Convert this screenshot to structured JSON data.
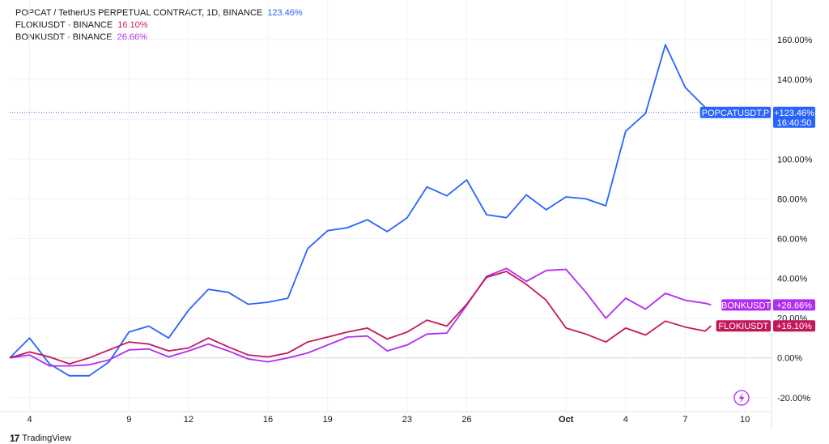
{
  "legend": [
    {
      "label": "POPCAT / TetherUS PERPETUAL CONTRACT, 1D, BINANCE",
      "value": "123.46%",
      "color": "#2962ff"
    },
    {
      "label": "FLOKIUSDT · BINANCE",
      "value": "16.10%",
      "color": "#d6195c"
    },
    {
      "label": "BONKUSDT · BINANCE",
      "value": "26.66%",
      "color": "#b12bf4"
    }
  ],
  "footer": {
    "logo": "17",
    "brand": "TradingView"
  },
  "flash_icon": "lightning-icon",
  "chart_data": {
    "type": "line",
    "x_ticks": [
      {
        "day": 4,
        "label": "4"
      },
      {
        "day": 9,
        "label": "9"
      },
      {
        "day": 12,
        "label": "12"
      },
      {
        "day": 16,
        "label": "16"
      },
      {
        "day": 19,
        "label": "19"
      },
      {
        "day": 23,
        "label": "23"
      },
      {
        "day": 26,
        "label": "26"
      },
      {
        "day": 31,
        "label": "Oct"
      },
      {
        "day": 34,
        "label": "4"
      },
      {
        "day": 37,
        "label": "7"
      },
      {
        "day": 40,
        "label": "10"
      }
    ],
    "xlim": [
      3,
      41.3
    ],
    "ylim": [
      -27,
      180
    ],
    "y_ticks": [
      {
        "v": 160,
        "label": "160.00%"
      },
      {
        "v": 140,
        "label": "140.00%"
      },
      {
        "v": 100,
        "label": "100.00%"
      },
      {
        "v": 80,
        "label": "80.00%"
      },
      {
        "v": 60,
        "label": "60.00%"
      },
      {
        "v": 40,
        "label": "40.00%"
      },
      {
        "v": 20,
        "label": "20.00%"
      },
      {
        "v": 0,
        "label": "0.00%"
      },
      {
        "v": -20,
        "label": "-20.00%"
      }
    ],
    "grid_ticks": [
      160,
      140,
      120,
      100,
      80,
      60,
      40,
      20,
      0,
      -20
    ],
    "series": [
      {
        "name": "POPCATUSDT.P",
        "color": "#2962ff",
        "tag_value": "+123.46%",
        "tag_time": "16:40:50",
        "last_value": 123.46,
        "points": [
          [
            3,
            0
          ],
          [
            4,
            10
          ],
          [
            5,
            -3
          ],
          [
            6,
            -9
          ],
          [
            7,
            -9
          ],
          [
            8,
            -2
          ],
          [
            9,
            13
          ],
          [
            10,
            16
          ],
          [
            11,
            10
          ],
          [
            12,
            24
          ],
          [
            13,
            34.5
          ],
          [
            14,
            33
          ],
          [
            15,
            27
          ],
          [
            16,
            28
          ],
          [
            17,
            30
          ],
          [
            18,
            55
          ],
          [
            19,
            64
          ],
          [
            20,
            65.5
          ],
          [
            21,
            69.5
          ],
          [
            22,
            63.5
          ],
          [
            23,
            70.5
          ],
          [
            24,
            86
          ],
          [
            25,
            81.5
          ],
          [
            26,
            89.5
          ],
          [
            27,
            72
          ],
          [
            28,
            70.5
          ],
          [
            29,
            82
          ],
          [
            30,
            74.5
          ],
          [
            31,
            81
          ],
          [
            32,
            80
          ],
          [
            33,
            76.5
          ],
          [
            34,
            114
          ],
          [
            35,
            123
          ],
          [
            36,
            157.5
          ],
          [
            37,
            136
          ],
          [
            38,
            126
          ],
          [
            38.3,
            123.46
          ]
        ]
      },
      {
        "name": "BONKUSDT",
        "color": "#b12bf4",
        "tag_value": "+26.66%",
        "last_value": 26.66,
        "points": [
          [
            3,
            0
          ],
          [
            4,
            1.5
          ],
          [
            5,
            -4
          ],
          [
            6,
            -4
          ],
          [
            7,
            -3.5
          ],
          [
            8,
            -1
          ],
          [
            9,
            4
          ],
          [
            10,
            4.5
          ],
          [
            11,
            0.5
          ],
          [
            12,
            3.5
          ],
          [
            13,
            7
          ],
          [
            14,
            3.5
          ],
          [
            15,
            -0.5
          ],
          [
            16,
            -2
          ],
          [
            17,
            0
          ],
          [
            18,
            2.5
          ],
          [
            19,
            6.5
          ],
          [
            20,
            10.5
          ],
          [
            21,
            11
          ],
          [
            22,
            3.5
          ],
          [
            23,
            6.5
          ],
          [
            24,
            12
          ],
          [
            25,
            12.5
          ],
          [
            26,
            26.5
          ],
          [
            27,
            41
          ],
          [
            28,
            45
          ],
          [
            29,
            38.5
          ],
          [
            30,
            44
          ],
          [
            31,
            44.5
          ],
          [
            32,
            33
          ],
          [
            33,
            20
          ],
          [
            34,
            30
          ],
          [
            35,
            24.5
          ],
          [
            36,
            32.5
          ],
          [
            37,
            29
          ],
          [
            38,
            27.5
          ],
          [
            38.3,
            26.66
          ]
        ]
      },
      {
        "name": "FLOKIUSDT",
        "color": "#c2185b",
        "tag_value": "+16.10%",
        "last_value": 16.1,
        "points": [
          [
            3,
            0
          ],
          [
            4,
            3
          ],
          [
            5,
            0.5
          ],
          [
            6,
            -3
          ],
          [
            7,
            0
          ],
          [
            8,
            4
          ],
          [
            9,
            8
          ],
          [
            10,
            7
          ],
          [
            11,
            3.5
          ],
          [
            12,
            5
          ],
          [
            13,
            10
          ],
          [
            14,
            5.5
          ],
          [
            15,
            1.5
          ],
          [
            16,
            0.5
          ],
          [
            17,
            2.5
          ],
          [
            18,
            8
          ],
          [
            19,
            10.5
          ],
          [
            20,
            13
          ],
          [
            21,
            15
          ],
          [
            22,
            9.5
          ],
          [
            23,
            13
          ],
          [
            24,
            19
          ],
          [
            25,
            16
          ],
          [
            26,
            27
          ],
          [
            27,
            40.5
          ],
          [
            28,
            43.5
          ],
          [
            29,
            37
          ],
          [
            30,
            29
          ],
          [
            31,
            15
          ],
          [
            32,
            12
          ],
          [
            33,
            8
          ],
          [
            34,
            15
          ],
          [
            35,
            11.5
          ],
          [
            36,
            18.5
          ],
          [
            37,
            15.5
          ],
          [
            38,
            13.5
          ],
          [
            38.3,
            16.1
          ]
        ]
      }
    ],
    "price_line": 123.46
  }
}
